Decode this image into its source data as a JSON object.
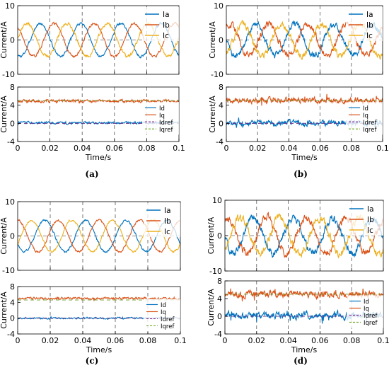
{
  "colors": {
    "phase_a": "#0072BD",
    "phase_b": "#D95319",
    "phase_c": "#EDB120",
    "id": "#0072BD",
    "iq": "#D95319",
    "idref": "#7E2F8E",
    "iqref": "#77AC30",
    "grid": "#555555",
    "ref_dashed": "#666666"
  },
  "chart_data": [
    {
      "panel_label": "(a)",
      "plots": [
        {
          "type": "line",
          "ylabel": "Current/A",
          "xlabel": "",
          "xlim": [
            0,
            0.1
          ],
          "ylim": [
            -10,
            10
          ],
          "yticks": [
            "10",
            "0",
            "-10"
          ],
          "xticks": [],
          "x_grid_lines": [
            0.02,
            0.04,
            0.06,
            0.08
          ],
          "y_grid_lines": [
            0
          ],
          "legend_position": "top-right",
          "series": [
            {
              "name": "Ia",
              "kind": "sine",
              "amplitude": 4.8,
              "phase_deg": -112,
              "freq_hz": 40,
              "noise": 0.35
            },
            {
              "name": "Ib",
              "kind": "sine",
              "amplitude": 4.8,
              "phase_deg": 128,
              "freq_hz": 40,
              "noise": 0.35
            },
            {
              "name": "Ic",
              "kind": "sine",
              "amplitude": 4.8,
              "phase_deg": 8,
              "freq_hz": 40,
              "noise": 0.45
            }
          ]
        },
        {
          "type": "line",
          "ylabel": "Current/A",
          "xlabel": "Time/s",
          "xlim": [
            0,
            0.1
          ],
          "ylim": [
            -4,
            8
          ],
          "yticks": [
            "8",
            "4",
            "0",
            "-4"
          ],
          "xticks": [
            "0",
            "0.02",
            "0.04",
            "0.06",
            "0.08",
            "0.1"
          ],
          "x_grid_lines": [
            0.02,
            0.04,
            0.06,
            0.08
          ],
          "y_grid_lines": [
            5,
            0
          ],
          "legend_position": "right",
          "series": [
            {
              "name": "Id",
              "kind": "const",
              "value": 0.1,
              "noise": 0.25
            },
            {
              "name": "Iq",
              "kind": "const",
              "value": 4.9,
              "noise": 0.3
            },
            {
              "name": "Idref",
              "kind": "ref",
              "value": 0
            },
            {
              "name": "Iqref",
              "kind": "ref",
              "value": 5
            }
          ]
        }
      ]
    },
    {
      "panel_label": "(b)",
      "plots": [
        {
          "type": "line",
          "ylabel": "Current/A",
          "xlabel": "",
          "xlim": [
            0,
            0.1
          ],
          "ylim": [
            -10,
            10
          ],
          "yticks": [
            "10",
            "0",
            "-10"
          ],
          "xticks": [],
          "x_grid_lines": [
            0.02,
            0.04,
            0.06,
            0.08
          ],
          "y_grid_lines": [
            0
          ],
          "legend_position": "top-right",
          "series": [
            {
              "name": "Ia",
              "kind": "sine",
              "amplitude": 4.6,
              "phase_deg": 180,
              "freq_hz": 40,
              "noise": 0.9
            },
            {
              "name": "Ib",
              "kind": "sine",
              "amplitude": 4.6,
              "phase_deg": 60,
              "freq_hz": 40,
              "noise": 0.9
            },
            {
              "name": "Ic",
              "kind": "sine",
              "amplitude": 4.6,
              "phase_deg": -60,
              "freq_hz": 40,
              "noise": 0.9
            }
          ]
        },
        {
          "type": "line",
          "ylabel": "Current/A",
          "xlabel": "Time/s",
          "xlim": [
            0,
            0.1
          ],
          "ylim": [
            -4,
            8
          ],
          "yticks": [
            "8",
            "4",
            "0",
            "-4"
          ],
          "xticks": [
            "0",
            "0.02",
            "0.04",
            "0.06",
            "0.08",
            "0.1"
          ],
          "x_grid_lines": [
            0.02,
            0.04,
            0.06,
            0.08
          ],
          "y_grid_lines": [
            5,
            0
          ],
          "legend_position": "right",
          "series": [
            {
              "name": "Id",
              "kind": "const",
              "value": 0.1,
              "noise": 0.55
            },
            {
              "name": "Iq",
              "kind": "const",
              "value": 5.0,
              "noise": 0.6
            },
            {
              "name": "Idref",
              "kind": "ref",
              "value": 0
            },
            {
              "name": "Iqref",
              "kind": "ref",
              "value": 5
            }
          ]
        }
      ]
    },
    {
      "panel_label": "(c)",
      "plots": [
        {
          "type": "line",
          "ylabel": "Current/A",
          "xlabel": "",
          "xlim": [
            0,
            0.1
          ],
          "ylim": [
            -10,
            10
          ],
          "yticks": [
            "10",
            "0",
            "-10"
          ],
          "xticks": [],
          "x_grid_lines": [
            0.02,
            0.04,
            0.06,
            0.08
          ],
          "y_grid_lines": [
            0
          ],
          "legend_position": "top-right",
          "series": [
            {
              "name": "Ia",
              "kind": "sine",
              "amplitude": 4.6,
              "phase_deg": -150,
              "freq_hz": 40,
              "noise": 0.3
            },
            {
              "name": "Ib",
              "kind": "sine",
              "amplitude": 4.6,
              "phase_deg": 90,
              "freq_hz": 40,
              "noise": 0.3
            },
            {
              "name": "Ic",
              "kind": "sine",
              "amplitude": 4.6,
              "phase_deg": -30,
              "freq_hz": 40,
              "noise": 0.3
            }
          ]
        },
        {
          "type": "line",
          "ylabel": "Current/A",
          "xlabel": "Time/s",
          "xlim": [
            0,
            0.1
          ],
          "ylim": [
            -4,
            8
          ],
          "yticks": [
            "8",
            "4",
            "0",
            "-4"
          ],
          "xticks": [
            "0",
            "0.02",
            "0.04",
            "0.06",
            "0.08",
            "0.1"
          ],
          "x_grid_lines": [
            0.02,
            0.04,
            0.06,
            0.08
          ],
          "y_grid_lines": [
            4.6,
            0
          ],
          "legend_position": "right",
          "series": [
            {
              "name": "Id",
              "kind": "const",
              "value": 0.0,
              "noise": 0.2
            },
            {
              "name": "Iq",
              "kind": "const",
              "value": 5.0,
              "noise": 0.25
            },
            {
              "name": "Idref",
              "kind": "ref",
              "value": 0
            },
            {
              "name": "Iqref",
              "kind": "ref",
              "value": 4.6
            }
          ]
        }
      ]
    },
    {
      "panel_label": "(d)",
      "plots": [
        {
          "type": "line",
          "ylabel": "Current/A",
          "xlabel": "",
          "xlim": [
            0,
            0.1
          ],
          "ylim": [
            -10,
            10
          ],
          "yticks": [
            "10",
            "0",
            "-10"
          ],
          "xticks": [],
          "x_grid_lines": [
            0.02,
            0.04,
            0.06,
            0.08
          ],
          "y_grid_lines": [
            0
          ],
          "legend_position": "top-right",
          "series": [
            {
              "name": "Ia",
              "kind": "sine",
              "amplitude": 5.0,
              "phase_deg": -170,
              "freq_hz": 40,
              "noise": 1.0
            },
            {
              "name": "Ib",
              "kind": "sine",
              "amplitude": 5.0,
              "phase_deg": 70,
              "freq_hz": 40,
              "noise": 1.0
            },
            {
              "name": "Ic",
              "kind": "sine",
              "amplitude": 5.0,
              "phase_deg": -50,
              "freq_hz": 40,
              "noise": 1.0
            }
          ]
        },
        {
          "type": "line",
          "ylabel": "Current/A",
          "xlabel": "Time/s",
          "xlim": [
            0,
            0.1
          ],
          "ylim": [
            -4,
            8
          ],
          "yticks": [
            "8",
            "4",
            "0",
            "-4"
          ],
          "xticks": [
            "0",
            "0.02",
            "0.04",
            "0.06",
            "0.08",
            "0.1"
          ],
          "x_grid_lines": [
            0.02,
            0.04,
            0.06,
            0.08
          ],
          "y_grid_lines": [
            5,
            0
          ],
          "legend_position": "right",
          "series": [
            {
              "name": "Id",
              "kind": "const",
              "value": 0.2,
              "noise": 0.7
            },
            {
              "name": "Iq",
              "kind": "const",
              "value": 5.0,
              "noise": 0.7
            },
            {
              "name": "Idref",
              "kind": "ref",
              "value": 0
            },
            {
              "name": "Iqref",
              "kind": "ref",
              "value": 5
            }
          ]
        }
      ]
    }
  ]
}
